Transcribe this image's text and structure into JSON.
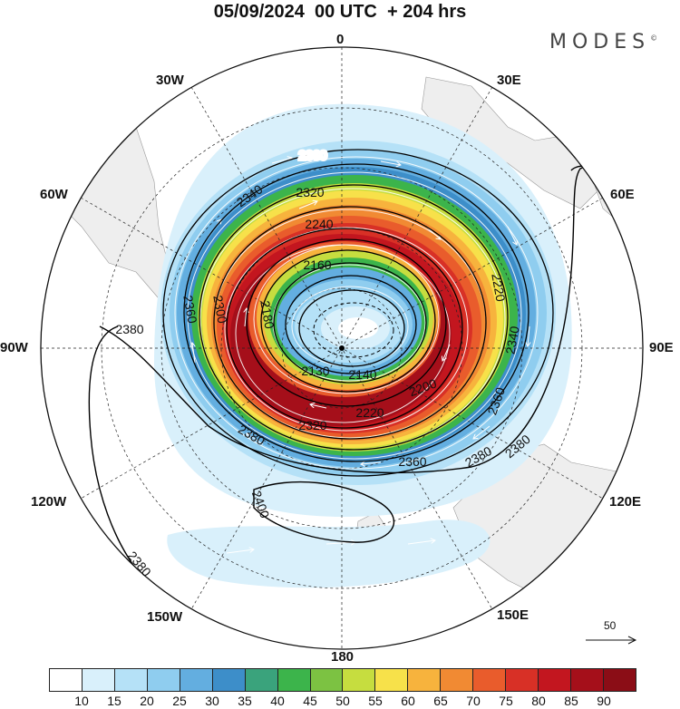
{
  "title": "05/09/2024  00 UTC  + 204 hrs",
  "brand": "MODES",
  "brand_mark": "©",
  "longitude_labels": [
    "0",
    "30E",
    "60E",
    "90E",
    "120E",
    "150E",
    "180",
    "150W",
    "120W",
    "90W",
    "60W",
    "30W"
  ],
  "contour_labels": [
    "2360",
    "2340",
    "2320",
    "2240",
    "2160",
    "2380",
    "2360",
    "2300",
    "2180",
    "2130",
    "2140",
    "2200",
    "2220",
    "2320",
    "2360",
    "2380",
    "2400",
    "2380",
    "2380",
    "2220",
    "2340",
    "2360",
    "2380"
  ],
  "legend": {
    "ticks": [
      "10",
      "15",
      "20",
      "25",
      "30",
      "35",
      "40",
      "45",
      "50",
      "55",
      "60",
      "65",
      "70",
      "75",
      "80",
      "85",
      "90"
    ],
    "colors": [
      "#ffffff",
      "#d9f0fb",
      "#b5e1f7",
      "#8fcdef",
      "#63aee0",
      "#3d8ec9",
      "#3aa37c",
      "#3cb44b",
      "#7cc242",
      "#c6dd3f",
      "#f7e14a",
      "#f7b33d",
      "#f18a33",
      "#e95c2c",
      "#d83026",
      "#c3161f",
      "#a50f1a",
      "#8b0d16"
    ]
  },
  "reference_vector": {
    "value": "50"
  }
}
